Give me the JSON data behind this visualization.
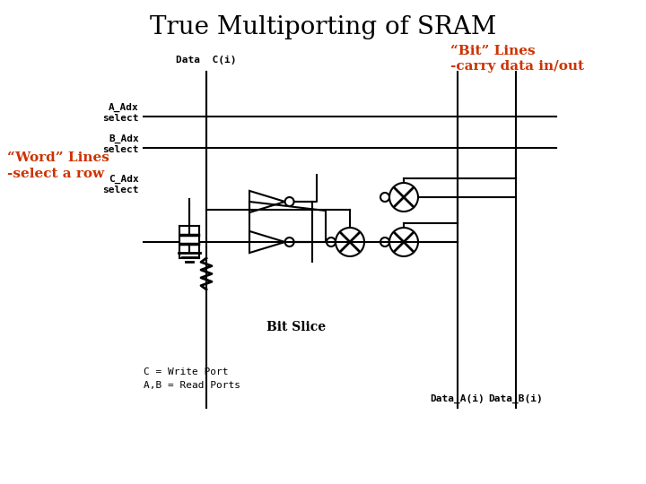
{
  "title": "True Multiporting of SRAM",
  "title_fontsize": 20,
  "title_color": "#000000",
  "bg_color": "#ffffff",
  "annotation_color": "#cc3300",
  "diagram_color": "#000000",
  "bit_lines_label": "“Bit” Lines\n-carry data in/out",
  "word_lines_label": "“Word” Lines\n-select a row",
  "data_c_label": "Data  C(i)",
  "a_adx_label": "A_Adx\nselect",
  "b_adx_label": "B_Adx\nselect",
  "c_adx_label": "C_Adx\nselect",
  "bit_slice_label": "Bit Slice",
  "data_a_label": "Data_A(i)",
  "data_b_label": "Data_B(i)",
  "legend_text": "C = Write Port\nA,B = Read Ports",
  "figsize": [
    7.2,
    5.4
  ],
  "dpi": 100
}
